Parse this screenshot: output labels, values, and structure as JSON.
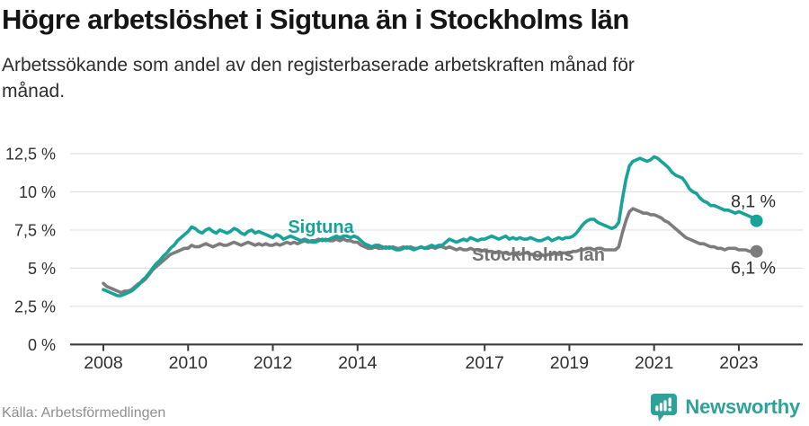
{
  "header": {
    "title": "Högre arbetslöshet i Sigtuna än i Stockholms län",
    "subtitle": "Arbetssökande som andel av den registerbaserade arbetskraften månad för månad."
  },
  "footer": {
    "source": "Källa: Arbetsförmedlingen",
    "brand": "Newsworthy"
  },
  "colors": {
    "sigtuna": "#17a398",
    "stockholm": "#7c7c7c",
    "stockholm_label": "#737373",
    "grid": "#e0e0e0",
    "axis": "#3a3a3a",
    "tick_text": "#303030",
    "end_label_text": "#2b2b2b",
    "brand_teal": "#2ea299"
  },
  "chart_data": {
    "type": "line",
    "x_start_year": 2008,
    "points_per_year": 12,
    "ylim": [
      0,
      12.5
    ],
    "grid": true,
    "x_ticks": [
      {
        "v": 2008,
        "label": "2008"
      },
      {
        "v": 2010,
        "label": "2010"
      },
      {
        "v": 2012,
        "label": "2012"
      },
      {
        "v": 2014,
        "label": "2014"
      },
      {
        "v": 2017,
        "label": "2017"
      },
      {
        "v": 2019,
        "label": "2019"
      },
      {
        "v": 2021,
        "label": "2021"
      },
      {
        "v": 2023,
        "label": "2023"
      }
    ],
    "y_ticks": [
      {
        "v": 0,
        "label": "0 %"
      },
      {
        "v": 2.5,
        "label": "2,5 %"
      },
      {
        "v": 5,
        "label": "5 %"
      },
      {
        "v": 7.5,
        "label": "7,5 %"
      },
      {
        "v": 10,
        "label": "10 %"
      },
      {
        "v": 12.5,
        "label": "12,5 %"
      }
    ],
    "series": [
      {
        "name": "Sigtuna",
        "label": "Sigtuna",
        "end_label": "8,1 %",
        "color_key": "sigtuna",
        "values": [
          3.6,
          3.5,
          3.4,
          3.3,
          3.2,
          3.2,
          3.3,
          3.4,
          3.5,
          3.7,
          3.9,
          4.2,
          4.4,
          4.7,
          5.0,
          5.3,
          5.5,
          5.8,
          6.0,
          6.3,
          6.5,
          6.8,
          7.0,
          7.2,
          7.4,
          7.7,
          7.6,
          7.4,
          7.3,
          7.5,
          7.6,
          7.4,
          7.3,
          7.5,
          7.4,
          7.3,
          7.4,
          7.6,
          7.5,
          7.3,
          7.2,
          7.4,
          7.5,
          7.3,
          7.4,
          7.3,
          7.2,
          7.1,
          7.0,
          7.2,
          7.1,
          6.9,
          7.0,
          7.1,
          7.0,
          6.9,
          6.8,
          6.9,
          6.8,
          6.7,
          6.7,
          6.8,
          6.9,
          6.8,
          6.9,
          7.0,
          7.1,
          7.0,
          7.1,
          7.1,
          7.0,
          7.1,
          7.0,
          6.8,
          6.6,
          6.5,
          6.4,
          6.5,
          6.5,
          6.4,
          6.3,
          6.4,
          6.3,
          6.2,
          6.2,
          6.3,
          6.4,
          6.3,
          6.2,
          6.3,
          6.4,
          6.3,
          6.4,
          6.5,
          6.4,
          6.5,
          6.5,
          6.7,
          6.9,
          6.8,
          6.7,
          6.8,
          6.9,
          6.8,
          7.0,
          6.9,
          6.8,
          6.9,
          6.9,
          7.0,
          7.1,
          7.0,
          6.9,
          7.0,
          7.1,
          6.9,
          7.0,
          6.9,
          7.0,
          6.9,
          6.9,
          7.0,
          6.9,
          6.8,
          6.8,
          6.9,
          7.0,
          6.8,
          6.9,
          7.0,
          6.9,
          7.0,
          7.0,
          7.1,
          7.3,
          7.6,
          7.9,
          8.1,
          8.2,
          8.2,
          8.0,
          7.9,
          7.8,
          7.7,
          7.6,
          7.7,
          8.0,
          9.5,
          10.8,
          11.7,
          12.0,
          12.1,
          12.2,
          12.1,
          12.0,
          12.1,
          12.3,
          12.2,
          12.0,
          11.8,
          11.6,
          11.3,
          11.1,
          11.0,
          10.9,
          10.6,
          10.2,
          10.0,
          9.9,
          9.6,
          9.4,
          9.3,
          9.1,
          9.1,
          9.0,
          8.9,
          8.8,
          8.8,
          8.7,
          8.6,
          8.7,
          8.6,
          8.5,
          8.4,
          8.3,
          8.1
        ]
      },
      {
        "name": "Stockholms län",
        "label": "Stockholms län",
        "end_label": "6,1 %",
        "color_key": "stockholm",
        "values": [
          4.0,
          3.8,
          3.7,
          3.6,
          3.5,
          3.4,
          3.5,
          3.5,
          3.6,
          3.8,
          4.0,
          4.1,
          4.3,
          4.6,
          4.9,
          5.1,
          5.3,
          5.5,
          5.7,
          5.9,
          6.0,
          6.1,
          6.2,
          6.3,
          6.3,
          6.5,
          6.4,
          6.4,
          6.5,
          6.6,
          6.5,
          6.4,
          6.5,
          6.6,
          6.5,
          6.5,
          6.6,
          6.7,
          6.6,
          6.5,
          6.6,
          6.7,
          6.6,
          6.5,
          6.6,
          6.5,
          6.6,
          6.5,
          6.5,
          6.6,
          6.5,
          6.6,
          6.7,
          6.6,
          6.7,
          6.6,
          6.7,
          6.8,
          6.7,
          6.8,
          6.8,
          6.9,
          6.8,
          6.9,
          6.8,
          6.8,
          6.9,
          6.8,
          6.9,
          6.8,
          6.8,
          6.7,
          6.7,
          6.5,
          6.4,
          6.3,
          6.3,
          6.4,
          6.3,
          6.3,
          6.4,
          6.3,
          6.4,
          6.3,
          6.3,
          6.4,
          6.3,
          6.4,
          6.3,
          6.3,
          6.4,
          6.3,
          6.3,
          6.4,
          6.3,
          6.4,
          6.4,
          6.3,
          6.4,
          6.3,
          6.2,
          6.3,
          6.2,
          6.2,
          6.3,
          6.2,
          6.2,
          6.1,
          6.2,
          6.1,
          6.1,
          6.0,
          6.1,
          6.0,
          6.0,
          5.9,
          6.0,
          6.0,
          5.9,
          6.0,
          6.0,
          5.9,
          5.9,
          5.8,
          5.9,
          5.8,
          5.9,
          5.9,
          6.0,
          5.9,
          6.0,
          6.0,
          6.0,
          6.1,
          6.1,
          6.2,
          6.2,
          6.3,
          6.3,
          6.2,
          6.3,
          6.3,
          6.2,
          6.2,
          6.2,
          6.2,
          6.4,
          7.3,
          8.1,
          8.7,
          8.9,
          8.8,
          8.7,
          8.6,
          8.6,
          8.5,
          8.5,
          8.4,
          8.3,
          8.1,
          8.0,
          7.8,
          7.6,
          7.4,
          7.2,
          7.0,
          6.9,
          6.8,
          6.7,
          6.6,
          6.6,
          6.5,
          6.4,
          6.4,
          6.3,
          6.3,
          6.2,
          6.3,
          6.3,
          6.3,
          6.2,
          6.2,
          6.2,
          6.1,
          6.1,
          6.1
        ]
      }
    ]
  }
}
